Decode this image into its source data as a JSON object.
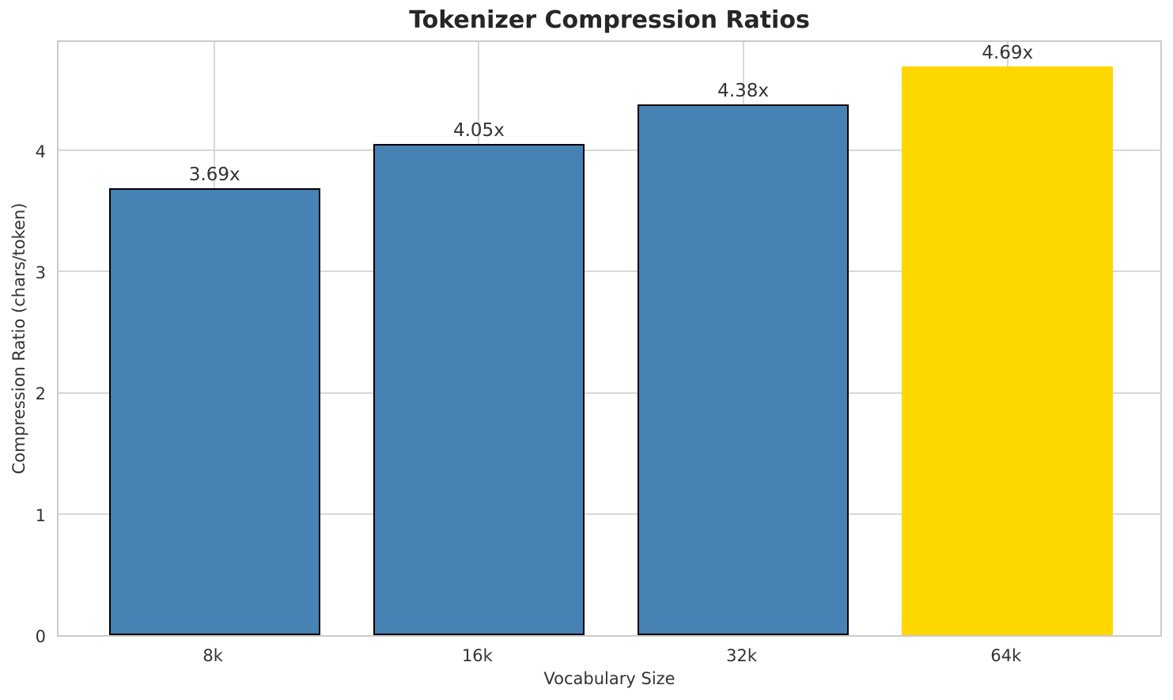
{
  "chart_data": {
    "type": "bar",
    "title": "Tokenizer Compression Ratios",
    "xlabel": "Vocabulary Size",
    "ylabel": "Compression Ratio (chars/token)",
    "categories": [
      "8k",
      "16k",
      "32k",
      "64k"
    ],
    "values": [
      3.69,
      4.05,
      4.38,
      4.69
    ],
    "value_labels": [
      "3.69x",
      "4.05x",
      "4.38x",
      "4.69x"
    ],
    "bar_colors": [
      "#4682b4",
      "#4682b4",
      "#4682b4",
      "#ffd700"
    ],
    "bar_edge_colors": [
      "#000000",
      "#000000",
      "#000000",
      "none"
    ],
    "base_color": "#4682b4",
    "highlight_color": "#ffd700",
    "grid_color": "#d8d8d8",
    "yticks": [
      0,
      1,
      2,
      3,
      4
    ],
    "ylim": [
      0,
      4.92
    ],
    "grid": "both",
    "legend": "none"
  }
}
